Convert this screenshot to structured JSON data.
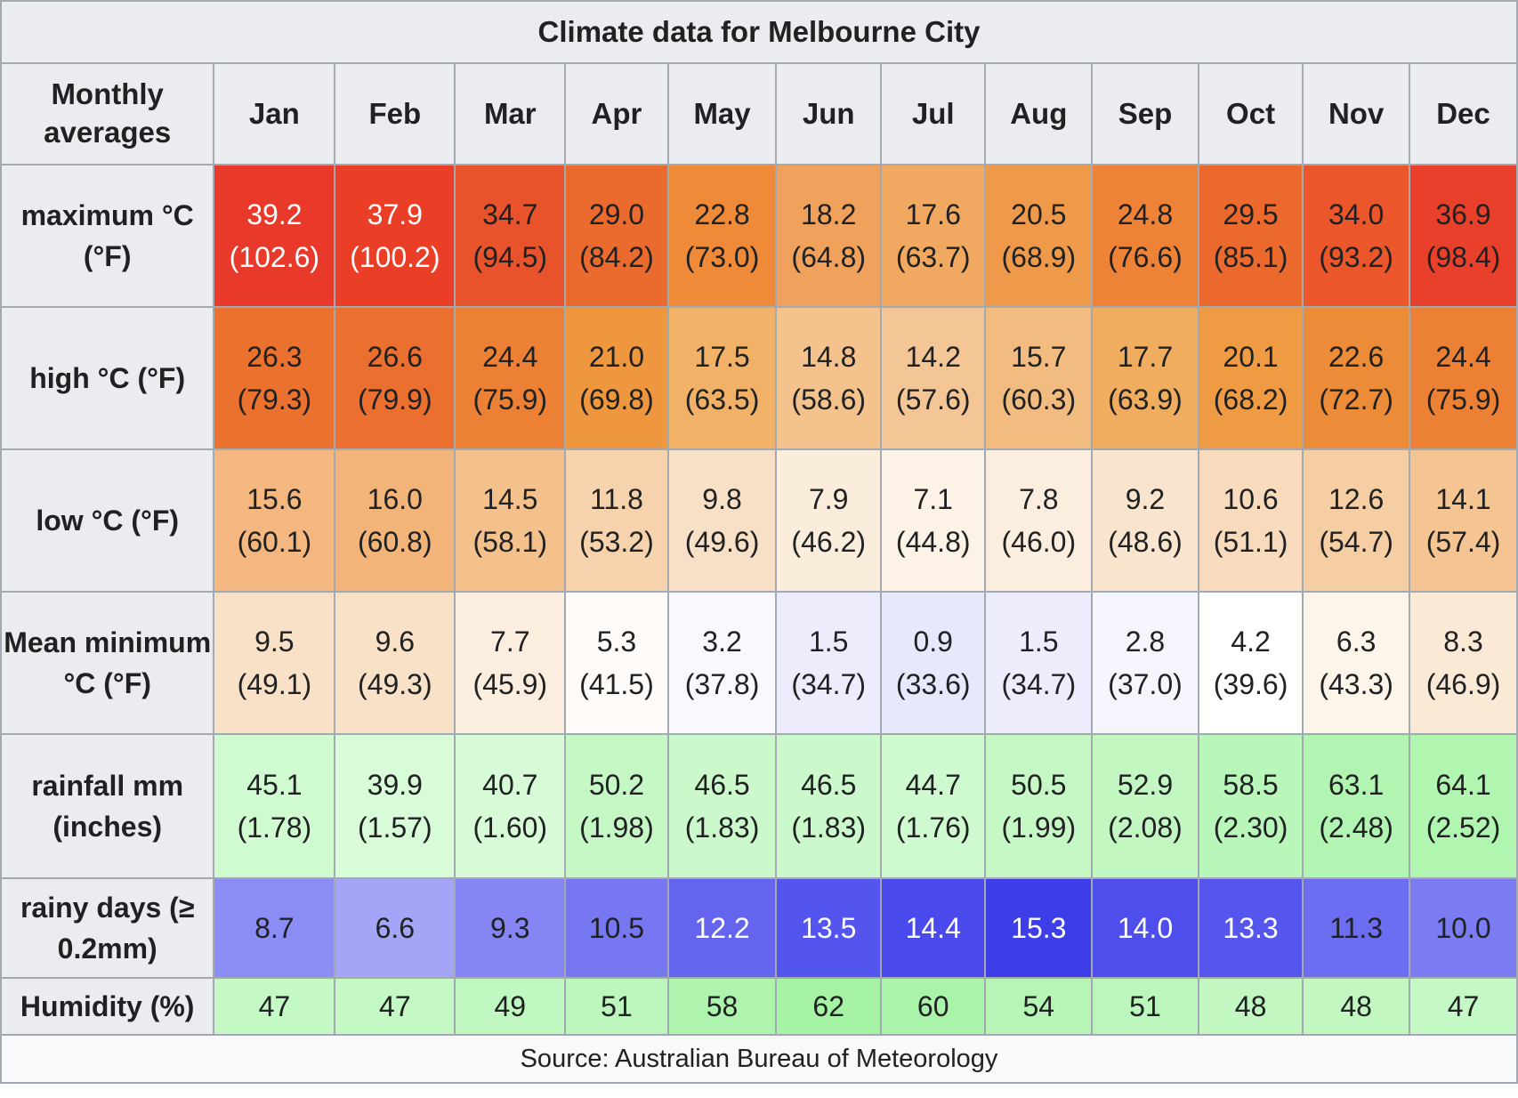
{
  "title": "Climate data for Melbourne City",
  "header_label": "Monthly averages",
  "months": [
    "Jan",
    "Feb",
    "Mar",
    "Apr",
    "May",
    "Jun",
    "Jul",
    "Aug",
    "Sep",
    "Oct",
    "Nov",
    "Dec"
  ],
  "rows": [
    {
      "id": "maximum",
      "label": "maximum °C (°F)",
      "values": [
        "39.2 (102.6)",
        "37.9 (100.2)",
        "34.7 (94.5)",
        "29.0 (84.2)",
        "22.8 (73.0)",
        "18.2 (64.8)",
        "17.6 (63.7)",
        "20.5 (68.9)",
        "24.8 (76.6)",
        "29.5 (85.1)",
        "34.0 (93.2)",
        "36.9 (98.4)"
      ],
      "colors": [
        "#e8392a",
        "#ea3e27",
        "#e9532b",
        "#eb6b2e",
        "#ee8a38",
        "#f0a25d",
        "#f1a860",
        "#ef9a4a",
        "#ee8337",
        "#eb692d",
        "#eb562b",
        "#e8402b"
      ],
      "text_colors": [
        "#ffffff",
        "#ffffff",
        "#202122",
        "#202122",
        "#202122",
        "#202122",
        "#202122",
        "#202122",
        "#202122",
        "#202122",
        "#202122",
        "#202122"
      ]
    },
    {
      "id": "high",
      "label": "high °C (°F)",
      "values": [
        "26.3 (79.3)",
        "26.6 (79.9)",
        "24.4 (75.9)",
        "21.0 (69.8)",
        "17.5 (63.5)",
        "14.8 (58.6)",
        "14.2 (57.6)",
        "15.7 (60.3)",
        "17.7 (63.9)",
        "20.1 (68.2)",
        "22.6 (72.7)",
        "24.4 (75.9)"
      ],
      "colors": [
        "#eb712f",
        "#eb6f2f",
        "#ec8035",
        "#ee973e",
        "#f1b167",
        "#f3c28d",
        "#f4c595",
        "#f2bb80",
        "#f0ad60",
        "#ef9b44",
        "#ed8c38",
        "#ec8035"
      ],
      "text_colors": [
        "#202122",
        "#202122",
        "#202122",
        "#202122",
        "#202122",
        "#202122",
        "#202122",
        "#202122",
        "#202122",
        "#202122",
        "#202122",
        "#202122"
      ]
    },
    {
      "id": "low",
      "label": "low °C (°F)",
      "values": [
        "15.6 (60.1)",
        "16.0 (60.8)",
        "14.5 (58.1)",
        "11.8 (53.2)",
        "9.8 (49.6)",
        "7.9 (46.2)",
        "7.1 (44.8)",
        "7.8 (46.0)",
        "9.2 (48.6)",
        "10.6 (51.1)",
        "12.6 (54.7)",
        "14.1 (57.4)"
      ],
      "colors": [
        "#f3b77f",
        "#f3b47a",
        "#f4c18c",
        "#f7d3ad",
        "#f8e0c6",
        "#fbeddc",
        "#fcf2e6",
        "#fbeede",
        "#f9e4cd",
        "#f8dbbc",
        "#f6cea3",
        "#f4c592"
      ],
      "text_colors": [
        "#202122",
        "#202122",
        "#202122",
        "#202122",
        "#202122",
        "#202122",
        "#202122",
        "#202122",
        "#202122",
        "#202122",
        "#202122",
        "#202122"
      ]
    },
    {
      "id": "mean_min",
      "label": "Mean minimum °C (°F)",
      "values": [
        "9.5 (49.1)",
        "9.6 (49.3)",
        "7.7 (45.9)",
        "5.3 (41.5)",
        "3.2 (37.8)",
        "1.5 (34.7)",
        "0.9 (33.6)",
        "1.5 (34.7)",
        "2.8 (37.0)",
        "4.2 (39.6)",
        "6.3 (43.3)",
        "8.3 (46.9)"
      ],
      "colors": [
        "#f9e1c8",
        "#f9e1c7",
        "#fceede",
        "#fffbf8",
        "#f8f8fe",
        "#ececfd",
        "#e8e8fc",
        "#ececfd",
        "#f5f5fe",
        "#fffffe",
        "#fdf4ea",
        "#fae9d5"
      ],
      "text_colors": [
        "#202122",
        "#202122",
        "#202122",
        "#202122",
        "#202122",
        "#202122",
        "#202122",
        "#202122",
        "#202122",
        "#202122",
        "#202122",
        "#202122"
      ]
    },
    {
      "id": "rainfall",
      "label": "rainfall mm (inches)",
      "values": [
        "45.1 (1.78)",
        "39.9 (1.57)",
        "40.7 (1.60)",
        "50.2 (1.98)",
        "46.5 (1.83)",
        "46.5 (1.83)",
        "44.7 (1.76)",
        "50.5 (1.99)",
        "52.9 (2.08)",
        "58.5 (2.30)",
        "63.1 (2.48)",
        "64.1 (2.52)"
      ],
      "colors": [
        "#d0fad0",
        "#d8fbd8",
        "#d6fbd6",
        "#c6f8c6",
        "#ccf9cc",
        "#ccf9cc",
        "#cff9cf",
        "#c6f8c6",
        "#c2f7c2",
        "#b9f6b9",
        "#b2f5b2",
        "#b0f5b0"
      ],
      "text_colors": [
        "#202122",
        "#202122",
        "#202122",
        "#202122",
        "#202122",
        "#202122",
        "#202122",
        "#202122",
        "#202122",
        "#202122",
        "#202122",
        "#202122"
      ]
    },
    {
      "id": "rainy_days",
      "label": "rainy days (≥ 0.2mm)",
      "values": [
        "8.7",
        "6.6",
        "9.3",
        "10.5",
        "12.2",
        "13.5",
        "14.4",
        "15.3",
        "14.0",
        "13.3",
        "11.3",
        "10.0"
      ],
      "colors": [
        "#8c8cf5",
        "#a5a5f8",
        "#8585f4",
        "#7777f2",
        "#6464ef",
        "#5454ee",
        "#4a4aec",
        "#3e3ee8",
        "#4e4eec",
        "#5656ee",
        "#6d6df1",
        "#7c7cf2"
      ],
      "text_colors": [
        "#202122",
        "#202122",
        "#202122",
        "#202122",
        "#ffffff",
        "#ffffff",
        "#ffffff",
        "#ffffff",
        "#ffffff",
        "#ffffff",
        "#202122",
        "#202122"
      ]
    },
    {
      "id": "humidity",
      "label": "Humidity (%)",
      "values": [
        "47",
        "47",
        "49",
        "51",
        "58",
        "62",
        "60",
        "54",
        "51",
        "48",
        "48",
        "47"
      ],
      "colors": [
        "#c4f8c4",
        "#c4f8c4",
        "#c0f7c0",
        "#bcf6bc",
        "#aef4ae",
        "#a6f3a6",
        "#aaf3aa",
        "#b6f5b6",
        "#bcf6bc",
        "#c2f7c2",
        "#c2f7c2",
        "#c4f8c4"
      ],
      "text_colors": [
        "#202122",
        "#202122",
        "#202122",
        "#202122",
        "#202122",
        "#202122",
        "#202122",
        "#202122",
        "#202122",
        "#202122",
        "#202122",
        "#202122"
      ]
    }
  ],
  "source": "Source: Australian Bureau of Meteorology"
}
